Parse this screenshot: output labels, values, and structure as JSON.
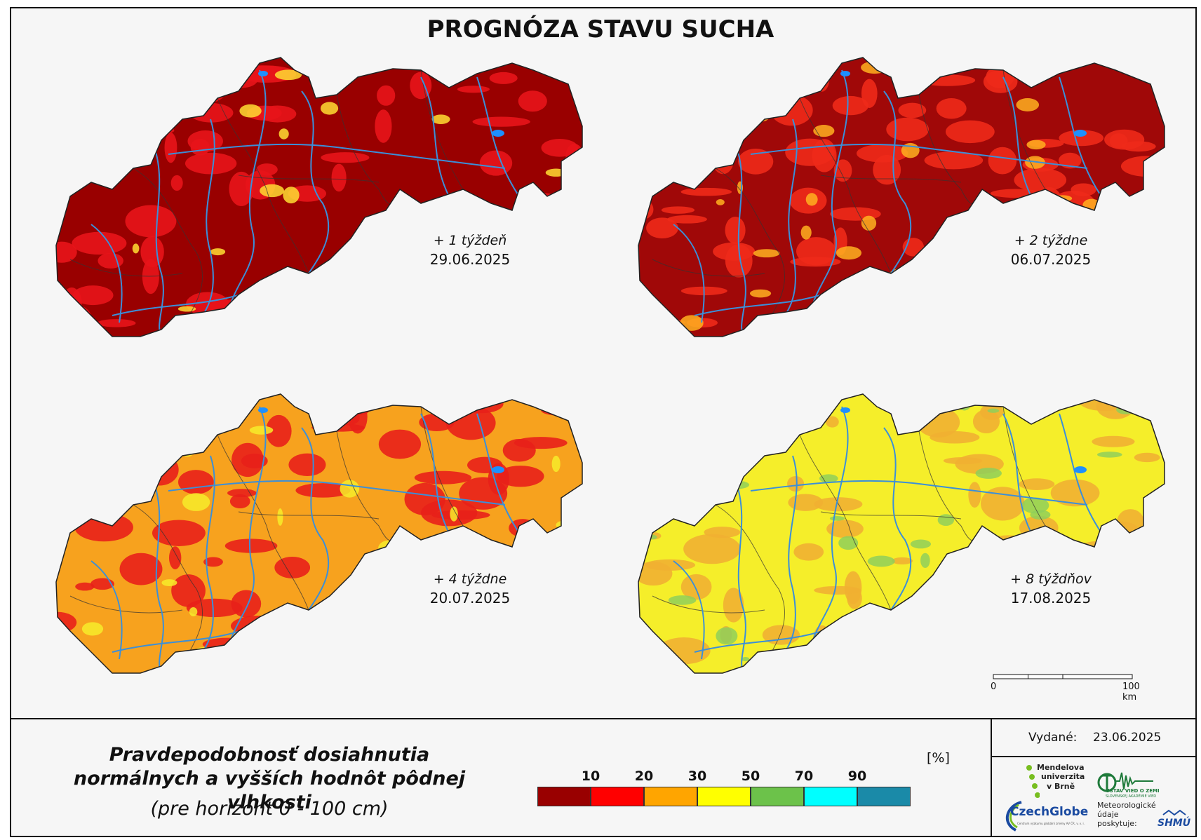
{
  "title": "PROGNÓZA STAVU SUCHA",
  "panels": [
    {
      "period": "+ 1 týždeň",
      "date": "29.06.2025",
      "dominant_color": "#990000",
      "secondary_color": "#e8141a",
      "accent_color": "#ffdd33"
    },
    {
      "period": "+ 2 týždne",
      "date": "06.07.2025",
      "dominant_color": "#a00808",
      "secondary_color": "#ee2a1a",
      "accent_color": "#ffb020"
    },
    {
      "period": "+ 4 týždne",
      "date": "20.07.2025",
      "dominant_color": "#f7a21e",
      "secondary_color": "#e8201a",
      "accent_color": "#f7ec2a"
    },
    {
      "period": "+ 8 týždňov",
      "date": "17.08.2025",
      "dominant_color": "#f5ee2a",
      "secondary_color": "#f1b032",
      "accent_color": "#8fcf5a"
    }
  ],
  "legend": {
    "title_line1": "Pravdepodobnosť dosiahnutia",
    "title_line2": "normálnych a vyšších hodnôt pôdnej vlhkosti",
    "subtitle": "(pre horizont 0 - 100 cm)",
    "unit": "[%]",
    "ticks": [
      "10",
      "20",
      "30",
      "50",
      "70",
      "90"
    ],
    "colors": [
      "#990000",
      "#ff0000",
      "#ffa500",
      "#ffff00",
      "#6cc24a",
      "#00ffff",
      "#1a8aa8"
    ]
  },
  "issued": {
    "label": "Vydané:",
    "date": "23.06.2025"
  },
  "scale": {
    "start": "0",
    "end": "100 km"
  },
  "logos": {
    "mendel": [
      "Mendelova",
      "univerzita",
      "v Brně"
    ],
    "czechglobe": "CzechGlobe",
    "czechglobe_sub": "Centrum výzkumu globální změny AV ČR, v. v. i.",
    "uvoz": "ÚSTAV VIED O ZEMI",
    "uvoz_sub": "SLOVENSKEJ AKADÉMIE VIED",
    "meteo": [
      "Meteorologické",
      "údaje",
      "poskytuje:"
    ],
    "shmu": "SHMÚ"
  },
  "colors": {
    "river": "#3b8fd9",
    "border": "#333333",
    "lake": "#1e90ff"
  }
}
